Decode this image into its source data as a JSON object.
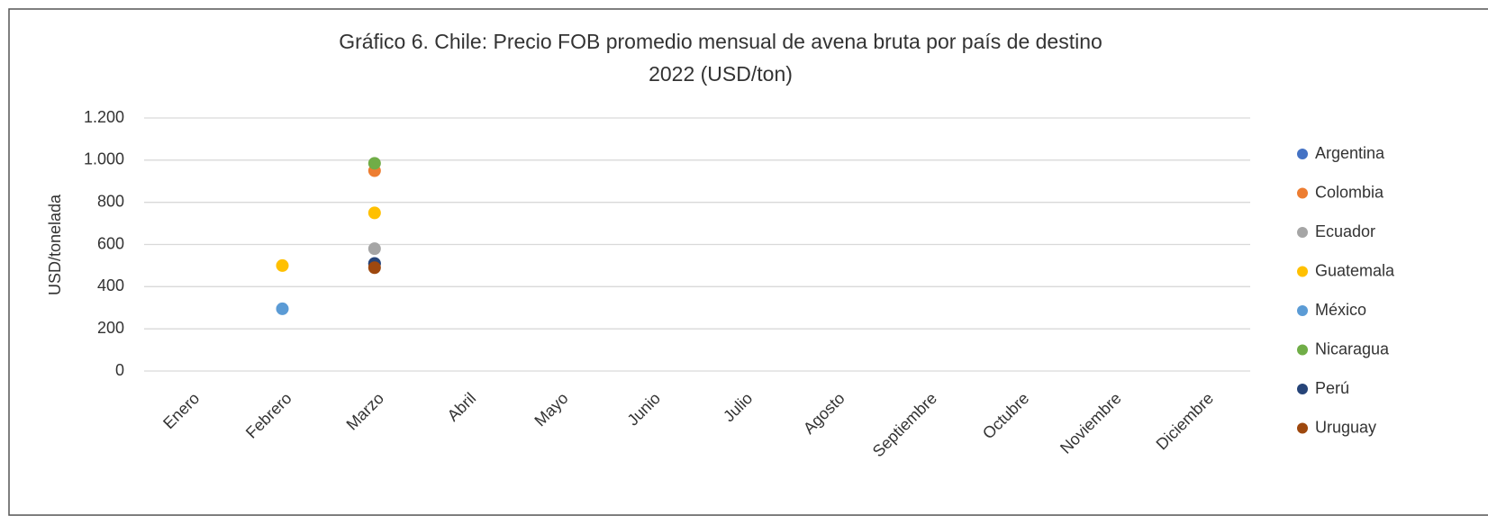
{
  "chart_data": {
    "type": "scatter",
    "title": "Gráfico 6. Chile: Precio FOB promedio mensual de avena bruta por país de destino",
    "subtitle": "2022 (USD/ton)",
    "y_label": "USD/tonelada",
    "categories": [
      "Enero",
      "Febrero",
      "Marzo",
      "Abril",
      "Mayo",
      "Junio",
      "Julio",
      "Agosto",
      "Septiembre",
      "Octubre",
      "Noviembre",
      "Diciembre"
    ],
    "series": [
      {
        "name": "Argentina",
        "color": "#4472c4",
        "values": [
          null,
          null,
          510,
          null,
          null,
          null,
          null,
          null,
          null,
          null,
          null,
          null
        ]
      },
      {
        "name": "Colombia",
        "color": "#ed7d31",
        "values": [
          null,
          null,
          950,
          null,
          null,
          null,
          null,
          null,
          null,
          null,
          null,
          null
        ]
      },
      {
        "name": "Ecuador",
        "color": "#a5a5a5",
        "values": [
          null,
          null,
          580,
          null,
          null,
          null,
          null,
          null,
          null,
          null,
          null,
          null
        ]
      },
      {
        "name": "Guatemala",
        "color": "#ffc000",
        "values": [
          null,
          500,
          750,
          null,
          null,
          null,
          null,
          null,
          null,
          null,
          null,
          null
        ]
      },
      {
        "name": "México",
        "color": "#5b9bd5",
        "values": [
          null,
          295,
          null,
          null,
          null,
          null,
          null,
          null,
          null,
          null,
          null,
          null
        ]
      },
      {
        "name": "Nicaragua",
        "color": "#70ad47",
        "values": [
          null,
          null,
          985,
          null,
          null,
          null,
          null,
          null,
          null,
          null,
          null,
          null
        ]
      },
      {
        "name": "Perú",
        "color": "#264478",
        "values": [
          null,
          null,
          510,
          null,
          null,
          null,
          null,
          null,
          null,
          null,
          null,
          null
        ]
      },
      {
        "name": "Uruguay",
        "color": "#9e480e",
        "values": [
          null,
          null,
          490,
          null,
          null,
          null,
          null,
          null,
          null,
          null,
          null,
          null
        ]
      }
    ],
    "ylim": [
      0,
      1200
    ],
    "yticks": [
      0,
      200,
      400,
      600,
      800,
      {
        "value": 1000,
        "label": "1.000"
      },
      {
        "value": 1200,
        "label": "1.200"
      }
    ],
    "grid": true,
    "legend": "right"
  }
}
